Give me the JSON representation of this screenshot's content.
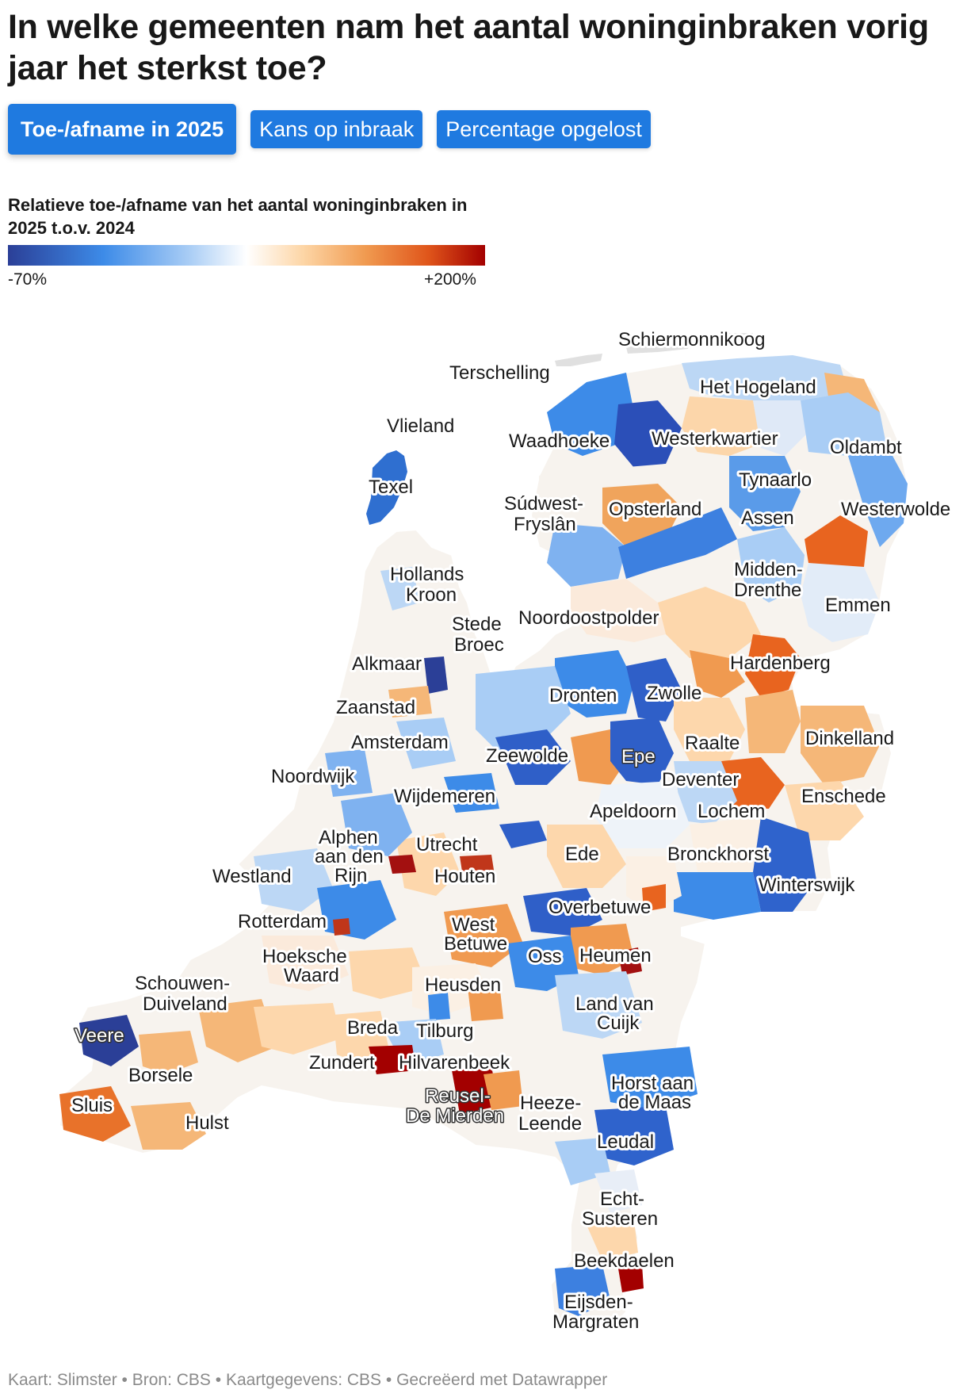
{
  "title": "In welke gemeenten nam het aantal woninginbraken vorig jaar het sterkst toe?",
  "tabs": [
    {
      "label": "Toe-/afname in 2025",
      "active": true
    },
    {
      "label": "Kans op inbraak",
      "active": false
    },
    {
      "label": "Percentage opgelost",
      "active": false
    }
  ],
  "legend": {
    "title": "Relatieve toe-/afname van het aantal woninginbraken in 2025 t.o.v. 2024",
    "min_label": "-70%",
    "max_label": "+200%",
    "scale_colors": [
      "#2b3f97",
      "#3d8be8",
      "#a9cdf5",
      "#ffffff",
      "#fdd5a5",
      "#f09a50",
      "#e0561b",
      "#a30000"
    ]
  },
  "map": {
    "labels": {
      "schiermonnikoog": "Schiermonnikoog",
      "terschelling": "Terschelling",
      "vlieland": "Vlieland",
      "texel": "Texel",
      "het_hogeland": "Het Hogeland",
      "waadhoeke": "Waadhoeke",
      "westerkwartier": "Westerkwartier",
      "oldambt": "Oldambt",
      "tynaarlo": "Tynaarlo",
      "sudwest_fryslan_1": "Súdwest-",
      "sudwest_fryslan_2": "Fryslân",
      "opsterland": "Opsterland",
      "assen": "Assen",
      "westerwolde": "Westerwolde",
      "hollands_kroon_1": "Hollands",
      "hollands_kroon_2": "Kroon",
      "midden_drenthe_1": "Midden-",
      "midden_drenthe_2": "Drenthe",
      "emmen": "Emmen",
      "stede_broec_1": "Stede",
      "stede_broec_2": "Broec",
      "noordoostpolder": "Noordoostpolder",
      "alkmaar": "Alkmaar",
      "hardenberg": "Hardenberg",
      "zwolle": "Zwolle",
      "dronten": "Dronten",
      "zaanstad": "Zaanstad",
      "amsterdam": "Amsterdam",
      "raalte": "Raalte",
      "dinkelland": "Dinkelland",
      "zeewolde": "Zeewolde",
      "epe": "Epe",
      "noordwijk": "Noordwijk",
      "deventer": "Deventer",
      "wijdemeren": "Wijdemeren",
      "enschede": "Enschede",
      "apeldoorn": "Apeldoorn",
      "lochem": "Lochem",
      "alphen_1": "Alphen",
      "alphen_2": "aan den",
      "alphen_3": "Rijn",
      "utrecht": "Utrecht",
      "ede": "Ede",
      "bronckhorst": "Bronckhorst",
      "westland": "Westland",
      "houten": "Houten",
      "winterswijk": "Winterswijk",
      "overbetuwe": "Overbetuwe",
      "rotterdam": "Rotterdam",
      "west_betuwe_1": "West",
      "west_betuwe_2": "Betuwe",
      "hoeksche_waard_1": "Hoeksche",
      "hoeksche_waard_2": "Waard",
      "oss": "Oss",
      "heumen": "Heumen",
      "schouwen_1": "Schouwen-",
      "schouwen_2": "Duiveland",
      "heusden": "Heusden",
      "land_van_cuijk_1": "Land van",
      "land_van_cuijk_2": "Cuijk",
      "breda": "Breda",
      "tilburg": "Tilburg",
      "veere": "Veere",
      "zundert": "Zundert",
      "hilvarenbeek": "Hilvarenbeek",
      "borsele": "Borsele",
      "horst_1": "Horst aan",
      "horst_2": "de Maas",
      "sluis": "Sluis",
      "reusel_1": "Reusel-",
      "reusel_2": "De Mierden",
      "heeze_1": "Heeze-",
      "heeze_2": "Leende",
      "hulst": "Hulst",
      "leudal": "Leudal",
      "echt_1": "Echt-",
      "echt_2": "Susteren",
      "beekdaelen": "Beekdaelen",
      "eijsden_1": "Eijsden-",
      "eijsden_2": "Margraten"
    }
  },
  "footer": "Kaart: Slimster • Bron: CBS • Kaartgegevens: CBS • Gecreëerd met Datawrapper"
}
